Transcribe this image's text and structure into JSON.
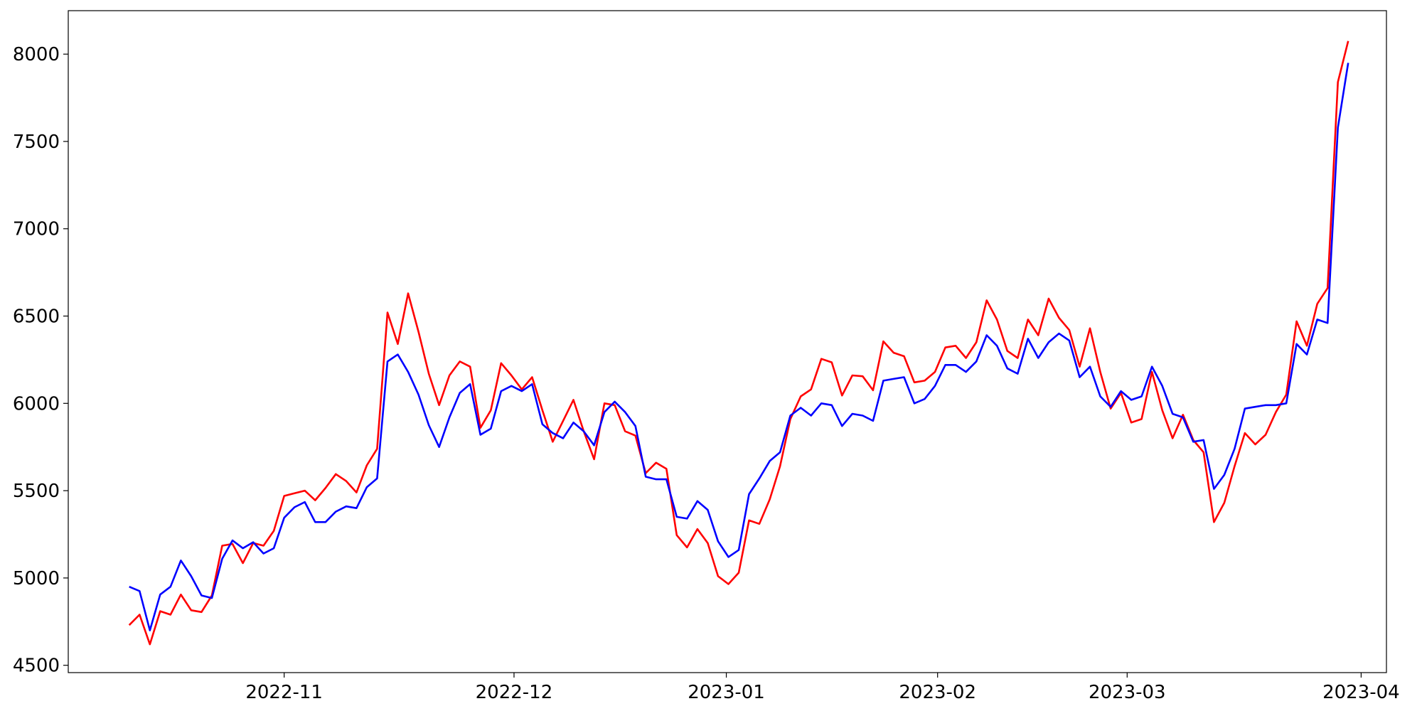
{
  "chart_data": {
    "type": "line",
    "series": [
      {
        "name": "red",
        "color": "#ff0000",
        "values": [
          4730,
          4790,
          4620,
          4810,
          4790,
          4905,
          4815,
          4805,
          4900,
          5185,
          5195,
          5085,
          5200,
          5185,
          5270,
          5470,
          5485,
          5500,
          5445,
          5515,
          5595,
          5555,
          5490,
          5645,
          5740,
          6520,
          6340,
          6630,
          6410,
          6170,
          5990,
          6160,
          6240,
          6210,
          5860,
          5960,
          6230,
          6160,
          6080,
          6150,
          5960,
          5780,
          5900,
          6020,
          5840,
          5680,
          6000,
          5990,
          5840,
          5815,
          5600,
          5660,
          5625,
          5245,
          5175,
          5280,
          5200,
          5010,
          4965,
          5030,
          5330,
          5310,
          5450,
          5640,
          5910,
          6040,
          6080,
          6255,
          6235,
          6045,
          6160,
          6155,
          6075,
          6355,
          6290,
          6270,
          6120,
          6130,
          6180,
          6320,
          6330,
          6260,
          6350,
          6590,
          6480,
          6300,
          6260,
          6480,
          6390,
          6600,
          6490,
          6420,
          6210,
          6430,
          6180,
          5970,
          6060,
          5890,
          5910,
          6180,
          5960,
          5800,
          5935,
          5790,
          5720,
          5320,
          5430,
          5640,
          5830,
          5765,
          5820,
          5950,
          6050,
          6470,
          6330,
          6570,
          6660,
          7840,
          8075
        ]
      },
      {
        "name": "blue",
        "color": "#0000ff",
        "values": [
          4950,
          4925,
          4700,
          4905,
          4950,
          5100,
          5010,
          4900,
          4885,
          5110,
          5215,
          5170,
          5205,
          5140,
          5170,
          5345,
          5405,
          5435,
          5320,
          5320,
          5380,
          5410,
          5400,
          5520,
          5570,
          6240,
          6280,
          6180,
          6050,
          5875,
          5750,
          5920,
          6060,
          6110,
          5820,
          5855,
          6070,
          6100,
          6070,
          6110,
          5880,
          5830,
          5800,
          5890,
          5840,
          5760,
          5950,
          6010,
          5950,
          5870,
          5580,
          5565,
          5565,
          5350,
          5340,
          5440,
          5390,
          5210,
          5120,
          5160,
          5480,
          5570,
          5670,
          5720,
          5930,
          5975,
          5930,
          6000,
          5990,
          5870,
          5940,
          5930,
          5900,
          6130,
          6140,
          6150,
          6000,
          6025,
          6100,
          6220,
          6220,
          6180,
          6240,
          6390,
          6330,
          6200,
          6170,
          6370,
          6260,
          6350,
          6400,
          6360,
          6150,
          6210,
          6040,
          5980,
          6070,
          6020,
          6040,
          6210,
          6100,
          5940,
          5920,
          5780,
          5790,
          5510,
          5590,
          5740,
          5970,
          5980,
          5990,
          5990,
          6000,
          6340,
          6280,
          6480,
          6460,
          7580,
          7950
        ]
      }
    ],
    "xlim": [
      -5.9,
      121.7
    ],
    "xticks": [
      {
        "value": 15,
        "label": "2022-11"
      },
      {
        "value": 37.25,
        "label": "2022-12"
      },
      {
        "value": 57.8,
        "label": "2023-01"
      },
      {
        "value": 78.25,
        "label": "2023-02"
      },
      {
        "value": 96.6,
        "label": "2023-03"
      },
      {
        "value": 119.25,
        "label": "2023-04"
      }
    ],
    "ylim": [
      4458,
      8249
    ],
    "yticks": [
      4500,
      5000,
      5500,
      6000,
      6500,
      7000,
      7500,
      8000
    ],
    "grid": false
  }
}
